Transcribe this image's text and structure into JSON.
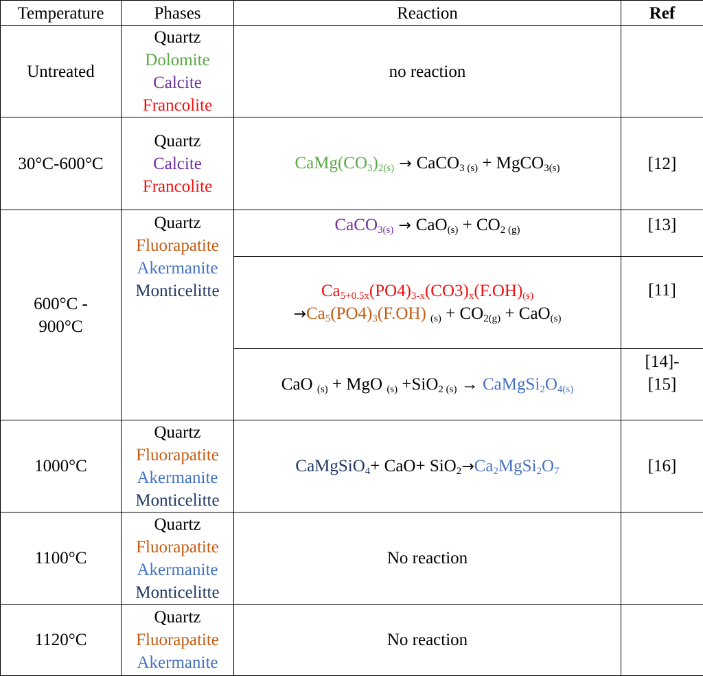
{
  "colors": {
    "black": "#000000",
    "green": "#5aa845",
    "purple": "#7030a0",
    "red": "#ee1111",
    "orange": "#c55a11",
    "light_blue": "#4472c4",
    "navy": "#1f3864"
  },
  "header": {
    "temperature": "Temperature",
    "phases": "Phases",
    "reaction": "Reaction",
    "ref": "Ref"
  },
  "rows": [
    {
      "temperature": "Untreated",
      "phases": [
        {
          "text": "Quartz",
          "color": "black"
        },
        {
          "text": "Dolomite",
          "color": "green"
        },
        {
          "text": "Calcite",
          "color": "purple"
        },
        {
          "text": "Francolite",
          "color": "red"
        }
      ],
      "reactions": [
        {
          "ref": "",
          "lines": [
            [
              {
                "t": "no reaction",
                "c": "black"
              }
            ]
          ]
        }
      ]
    },
    {
      "temperature": "30°C-600°C",
      "phases": [
        {
          "text": "Quartz",
          "color": "black"
        },
        {
          "text": "Calcite",
          "color": "purple"
        },
        {
          "text": "Francolite",
          "color": "red"
        }
      ],
      "reactions": [
        {
          "ref": "[12]",
          "lines": [
            [
              {
                "t": "CaMg(CO",
                "c": "green"
              },
              {
                "t": "3",
                "c": "green",
                "sub": true
              },
              {
                "t": ")",
                "c": "green"
              },
              {
                "t": "2(s)",
                "c": "green",
                "sub": true
              },
              {
                "t": " → ",
                "c": "black",
                "arrow": true
              },
              {
                "t": "CaCO",
                "c": "black"
              },
              {
                "t": "3 (s)",
                "c": "black",
                "sub": true
              },
              {
                "t": " + MgCO",
                "c": "black"
              },
              {
                "t": "3(s)",
                "c": "black",
                "sub": true
              }
            ]
          ]
        }
      ]
    },
    {
      "temperature": "600°C - 900°C",
      "phases": [
        {
          "text": "Quartz",
          "color": "black"
        },
        {
          "text": "Fluorapatite",
          "color": "orange"
        },
        {
          "text": "Akermanite",
          "color": "light_blue"
        },
        {
          "text": "Monticelitte",
          "color": "navy"
        }
      ],
      "reactions": [
        {
          "ref": "[13]",
          "align": "top",
          "lines": [
            [
              {
                "t": "CaCO",
                "c": "purple"
              },
              {
                "t": "3(s)",
                "c": "purple",
                "sub": true
              },
              {
                "t": "  → ",
                "c": "black",
                "arrow": true
              },
              {
                "t": "CaO",
                "c": "black"
              },
              {
                "t": "(s)",
                "c": "black",
                "sub": true
              },
              {
                "t": "   + CO",
                "c": "black"
              },
              {
                "t": "2 (g)",
                "c": "black",
                "sub": true
              }
            ]
          ]
        },
        {
          "ref": "[11]",
          "lines": [
            [
              {
                "t": "Ca",
                "c": "red"
              },
              {
                "t": "5+0.5x",
                "c": "red",
                "sub": true
              },
              {
                "t": "(PO4)",
                "c": "red"
              },
              {
                "t": "3-x",
                "c": "red",
                "sub": true
              },
              {
                "t": "(CO3)",
                "c": "red"
              },
              {
                "t": "x",
                "c": "red",
                "sub": true
              },
              {
                "t": "(F.OH)",
                "c": "red"
              },
              {
                "t": "(s)",
                "c": "red",
                "sub": true
              }
            ],
            [
              {
                "t": "→",
                "c": "black",
                "arrow": true
              },
              {
                "t": "Ca",
                "c": "orange"
              },
              {
                "t": "5",
                "c": "orange",
                "sub": true
              },
              {
                "t": "(PO4)",
                "c": "orange"
              },
              {
                "t": "3",
                "c": "orange",
                "sub": true
              },
              {
                "t": "(F.OH) ",
                "c": "orange"
              },
              {
                "t": "(s)",
                "c": "black",
                "sub": true
              },
              {
                "t": " + CO",
                "c": "black"
              },
              {
                "t": "2(g)",
                "c": "black",
                "sub": true
              },
              {
                "t": " + CaO",
                "c": "black"
              },
              {
                "t": "(s)",
                "c": "black",
                "sub": true
              }
            ]
          ]
        },
        {
          "ref": "[14]-[15]",
          "lines": [
            [
              {
                "t": "CaO ",
                "c": "black"
              },
              {
                "t": "(s)",
                "c": "black",
                "sub": true
              },
              {
                "t": " + MgO ",
                "c": "black"
              },
              {
                "t": "(s)",
                "c": "black",
                "sub": true
              },
              {
                "t": " +SiO",
                "c": "black"
              },
              {
                "t": "2 (s)",
                "c": "black",
                "sub": true
              },
              {
                "t": " → ",
                "c": "black"
              },
              {
                "t": "CaMgSi",
                "c": "light_blue"
              },
              {
                "t": "2",
                "c": "light_blue",
                "sub": true
              },
              {
                "t": "O",
                "c": "light_blue"
              },
              {
                "t": "4(s)",
                "c": "light_blue",
                "sub": true
              }
            ]
          ]
        }
      ]
    },
    {
      "temperature": "1000°C",
      "phases": [
        {
          "text": "Quartz",
          "color": "black"
        },
        {
          "text": "Fluorapatite",
          "color": "orange"
        },
        {
          "text": "Akermanite",
          "color": "light_blue"
        },
        {
          "text": "Monticelitte",
          "color": "navy"
        }
      ],
      "reactions": [
        {
          "ref": "[16]",
          "lines": [
            [
              {
                "t": "CaMgSiO",
                "c": "navy"
              },
              {
                "t": "4",
                "c": "navy",
                "sub": true
              },
              {
                "t": "+ CaO+ SiO",
                "c": "black"
              },
              {
                "t": "2",
                "c": "black",
                "sub": true
              },
              {
                "t": "→",
                "c": "black",
                "arrow": true
              },
              {
                "t": "Ca",
                "c": "light_blue"
              },
              {
                "t": "2",
                "c": "light_blue",
                "sub": true
              },
              {
                "t": "MgSi",
                "c": "light_blue"
              },
              {
                "t": "2",
                "c": "light_blue",
                "sub": true
              },
              {
                "t": "O",
                "c": "light_blue"
              },
              {
                "t": "7",
                "c": "light_blue",
                "sub": true
              }
            ]
          ]
        }
      ]
    },
    {
      "temperature": "1100°C",
      "phases": [
        {
          "text": "Quartz",
          "color": "black"
        },
        {
          "text": "Fluorapatite",
          "color": "orange"
        },
        {
          "text": "Akermanite",
          "color": "light_blue"
        },
        {
          "text": "Monticelitte",
          "color": "navy"
        }
      ],
      "reactions": [
        {
          "ref": "",
          "lines": [
            [
              {
                "t": "No reaction",
                "c": "black"
              }
            ]
          ]
        }
      ]
    },
    {
      "temperature": "1120°C",
      "phases": [
        {
          "text": "Quartz",
          "color": "black"
        },
        {
          "text": "Fluorapatite",
          "color": "orange"
        },
        {
          "text": "Akermanite",
          "color": "light_blue"
        }
      ],
      "reactions": [
        {
          "ref": "",
          "lines": [
            [
              {
                "t": "No reaction",
                "c": "black"
              }
            ]
          ]
        }
      ]
    }
  ]
}
